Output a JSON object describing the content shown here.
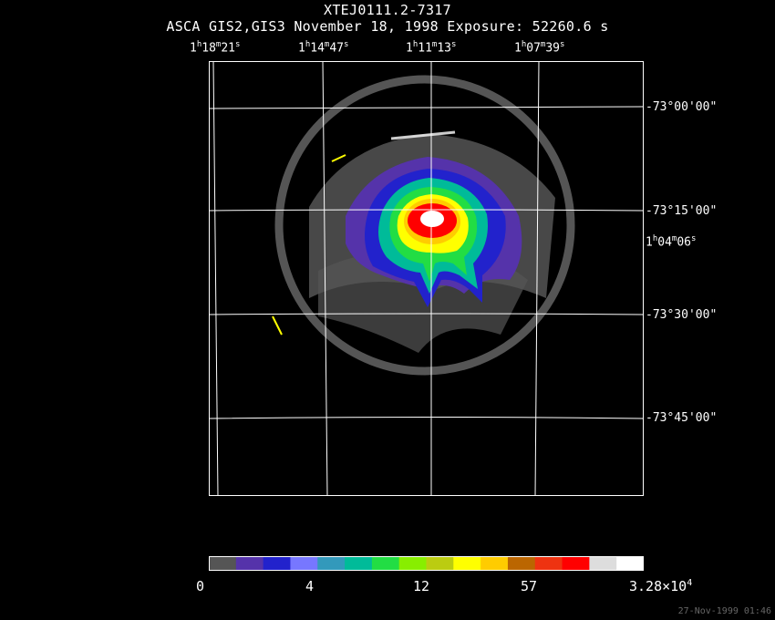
{
  "header": {
    "object": "XTEJ0111.2-7317",
    "observation": "ASCA GIS2,GIS3 November 18, 1998 Exposure: 52260.6 s"
  },
  "ra_labels": [
    {
      "h": "1",
      "m": "18",
      "s": "21"
    },
    {
      "h": "1",
      "m": "14",
      "s": "47"
    },
    {
      "h": "1",
      "m": "11",
      "s": "13"
    },
    {
      "h": "1",
      "m": "07",
      "s": "39"
    }
  ],
  "ra_side_label": {
    "h": "1",
    "m": "04",
    "s": "06"
  },
  "dec_labels": [
    "-73°00'00\"",
    "-73°15'00\"",
    "-73°30'00\"",
    "-73°45'00\""
  ],
  "colorbar": {
    "colors": [
      "#555555",
      "#5533aa",
      "#2222cc",
      "#7777ff",
      "#3399bb",
      "#00bb99",
      "#22dd44",
      "#88ee00",
      "#bbcc11",
      "#ffff00",
      "#ffcc00",
      "#bb6600",
      "#ee3311",
      "#ff0000",
      "#dddddd",
      "#ffffff"
    ],
    "labels": [
      {
        "text": "0"
      },
      {
        "text": "4"
      },
      {
        "text": "12"
      },
      {
        "text": "57"
      },
      {
        "text": "3.28×10",
        "sup": "4"
      }
    ]
  },
  "timestamp": "27-Nov-1999 01:46"
}
